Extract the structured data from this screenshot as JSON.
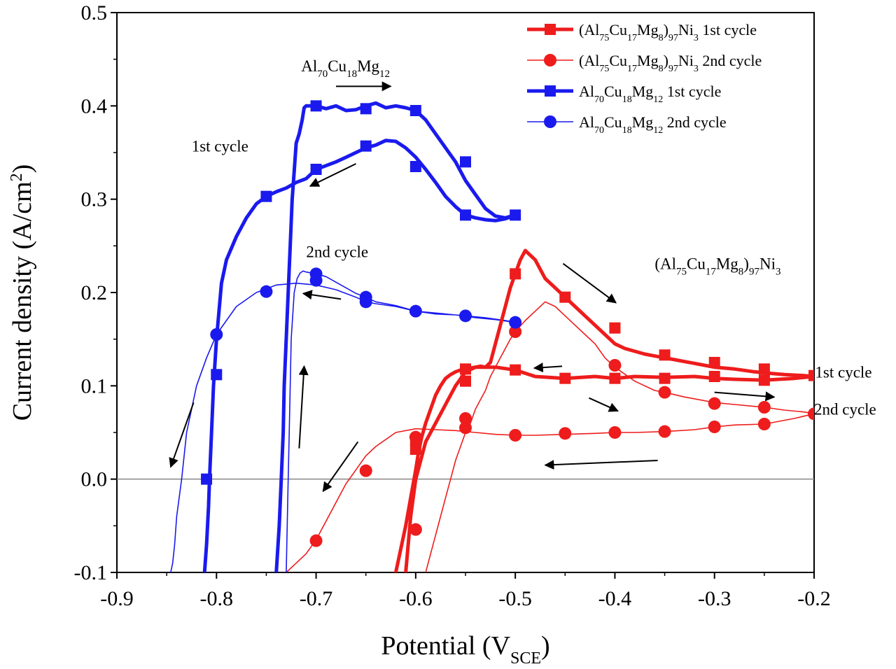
{
  "chart_data": {
    "type": "line",
    "title": "",
    "xlabel": {
      "main": "Potential (V",
      "sub": "SCE",
      "end": ")"
    },
    "ylabel": {
      "main": "Current density (A/cm",
      "sup": "2",
      "end": ")"
    },
    "xlim": [
      -0.9,
      -0.2
    ],
    "ylim": [
      -0.1,
      0.5
    ],
    "xticks": [
      -0.9,
      -0.8,
      -0.7,
      -0.6,
      -0.5,
      -0.4,
      -0.3,
      -0.2
    ],
    "xtick_labels": [
      "-0.9",
      "-0.8",
      "-0.7",
      "-0.6",
      "-0.5",
      "-0.4",
      "-0.3",
      "-0.2"
    ],
    "yticks": [
      -0.1,
      0.0,
      0.1,
      0.2,
      0.3,
      0.4,
      0.5
    ],
    "ytick_labels": [
      "-0.1",
      "0.0",
      "0.1",
      "0.2",
      "0.3",
      "0.4",
      "0.5"
    ],
    "zero_line": 0.0,
    "legend_position": "top-right",
    "series": [
      {
        "name": "(Al75Cu17Mg8)97Ni3 1st cycle",
        "legend": [
          {
            "t": "(Al"
          },
          {
            "t": "75",
            "s": "sub"
          },
          {
            "t": "Cu"
          },
          {
            "t": "17",
            "s": "sub"
          },
          {
            "t": "Mg"
          },
          {
            "t": "8",
            "s": "sub"
          },
          {
            "t": ")"
          },
          {
            "t": "97",
            "s": "sub"
          },
          {
            "t": "Ni"
          },
          {
            "t": "3",
            "s": "sub"
          },
          {
            "t": " 1st cycle"
          }
        ],
        "color": "#ee1c1c",
        "marker": "square",
        "weight": "thick",
        "x": [
          -0.62,
          -0.615,
          -0.61,
          -0.605,
          -0.6,
          -0.597,
          -0.594,
          -0.59,
          -0.585,
          -0.58,
          -0.575,
          -0.57,
          -0.565,
          -0.56,
          -0.555,
          -0.55,
          -0.545,
          -0.54,
          -0.535,
          -0.53,
          -0.525,
          -0.52,
          -0.515,
          -0.51,
          -0.505,
          -0.5,
          -0.495,
          -0.49,
          -0.485,
          -0.48,
          -0.475,
          -0.47,
          -0.46,
          -0.45,
          -0.44,
          -0.43,
          -0.42,
          -0.41,
          -0.4,
          -0.39,
          -0.38,
          -0.37,
          -0.36,
          -0.35,
          -0.34,
          -0.33,
          -0.32,
          -0.31,
          -0.3,
          -0.28,
          -0.26,
          -0.25,
          -0.23,
          -0.21,
          -0.2,
          -0.22,
          -0.25,
          -0.28,
          -0.3,
          -0.32,
          -0.35,
          -0.38,
          -0.4,
          -0.42,
          -0.45,
          -0.48,
          -0.5,
          -0.52,
          -0.54,
          -0.55,
          -0.56,
          -0.57,
          -0.58,
          -0.59,
          -0.595,
          -0.6,
          -0.605,
          -0.61
        ],
        "y": [
          -0.1,
          -0.075,
          -0.05,
          -0.02,
          0.01,
          0.03,
          0.045,
          0.06,
          0.075,
          0.09,
          0.1,
          0.108,
          0.112,
          0.115,
          0.117,
          0.118,
          0.119,
          0.12,
          0.121,
          0.12,
          0.125,
          0.145,
          0.165,
          0.185,
          0.205,
          0.22,
          0.235,
          0.245,
          0.24,
          0.235,
          0.225,
          0.215,
          0.205,
          0.195,
          0.185,
          0.175,
          0.165,
          0.155,
          0.145,
          0.14,
          0.137,
          0.134,
          0.132,
          0.13,
          0.128,
          0.126,
          0.124,
          0.122,
          0.12,
          0.118,
          0.115,
          0.114,
          0.112,
          0.111,
          0.11,
          0.108,
          0.106,
          0.107,
          0.108,
          0.11,
          0.109,
          0.11,
          0.108,
          0.11,
          0.108,
          0.11,
          0.117,
          0.12,
          0.12,
          0.115,
          0.1,
          0.08,
          0.06,
          0.04,
          0.02,
          0.0,
          -0.04,
          -0.1
        ],
        "marker_x": [
          -0.6,
          -0.55,
          -0.5,
          -0.45,
          -0.4,
          -0.35,
          -0.3,
          -0.25,
          -0.2,
          -0.25,
          -0.3,
          -0.35,
          -0.4,
          -0.45,
          -0.5,
          -0.55,
          -0.6
        ],
        "marker_y": [
          0.032,
          0.118,
          0.22,
          0.195,
          0.162,
          0.133,
          0.125,
          0.118,
          0.111,
          0.106,
          0.11,
          0.108,
          0.108,
          0.108,
          0.117,
          0.105,
          0.042
        ]
      },
      {
        "name": "(Al75Cu17Mg8)97Ni3 2nd cycle",
        "legend": [
          {
            "t": "(Al"
          },
          {
            "t": "75",
            "s": "sub"
          },
          {
            "t": "Cu"
          },
          {
            "t": "17",
            "s": "sub"
          },
          {
            "t": "Mg"
          },
          {
            "t": "8",
            "s": "sub"
          },
          {
            "t": ")"
          },
          {
            "t": "97",
            "s": "sub"
          },
          {
            "t": "Ni"
          },
          {
            "t": "3",
            "s": "sub"
          },
          {
            "t": " 2nd cycle"
          }
        ],
        "color": "#ee1c1c",
        "marker": "circle",
        "weight": "thin",
        "x": [
          -0.59,
          -0.585,
          -0.58,
          -0.575,
          -0.57,
          -0.565,
          -0.56,
          -0.555,
          -0.55,
          -0.545,
          -0.54,
          -0.535,
          -0.53,
          -0.525,
          -0.52,
          -0.515,
          -0.51,
          -0.505,
          -0.5,
          -0.49,
          -0.48,
          -0.47,
          -0.46,
          -0.45,
          -0.44,
          -0.43,
          -0.42,
          -0.41,
          -0.4,
          -0.38,
          -0.36,
          -0.35,
          -0.33,
          -0.3,
          -0.28,
          -0.26,
          -0.25,
          -0.23,
          -0.21,
          -0.2,
          -0.22,
          -0.25,
          -0.28,
          -0.3,
          -0.32,
          -0.35,
          -0.38,
          -0.4,
          -0.42,
          -0.45,
          -0.48,
          -0.5,
          -0.52,
          -0.54,
          -0.56,
          -0.58,
          -0.6,
          -0.62,
          -0.64,
          -0.65,
          -0.66,
          -0.67,
          -0.68,
          -0.69,
          -0.7,
          -0.71,
          -0.72,
          -0.73
        ],
        "y": [
          -0.1,
          -0.08,
          -0.06,
          -0.04,
          -0.02,
          0.0,
          0.02,
          0.035,
          0.05,
          0.06,
          0.075,
          0.085,
          0.095,
          0.11,
          0.12,
          0.13,
          0.14,
          0.15,
          0.158,
          0.17,
          0.18,
          0.19,
          0.185,
          0.175,
          0.165,
          0.155,
          0.145,
          0.13,
          0.12,
          0.105,
          0.095,
          0.093,
          0.088,
          0.082,
          0.08,
          0.078,
          0.077,
          0.074,
          0.072,
          0.07,
          0.065,
          0.059,
          0.058,
          0.056,
          0.053,
          0.051,
          0.05,
          0.05,
          0.049,
          0.048,
          0.047,
          0.047,
          0.048,
          0.05,
          0.052,
          0.053,
          0.054,
          0.05,
          0.035,
          0.025,
          0.01,
          -0.005,
          -0.025,
          -0.045,
          -0.065,
          -0.08,
          -0.09,
          -0.1
        ],
        "marker_x": [
          -0.6,
          -0.55,
          -0.5,
          -0.4,
          -0.35,
          -0.3,
          -0.25,
          -0.2,
          -0.25,
          -0.3,
          -0.35,
          -0.4,
          -0.45,
          -0.5,
          -0.55,
          -0.6,
          -0.65,
          -0.7
        ],
        "marker_y": [
          -0.054,
          0.055,
          0.158,
          0.122,
          0.093,
          0.081,
          0.077,
          0.07,
          0.059,
          0.056,
          0.051,
          0.05,
          0.049,
          0.047,
          0.065,
          0.045,
          0.009,
          -0.066
        ]
      },
      {
        "name": "Al70Cu18Mg12 1st cycle",
        "legend": [
          {
            "t": "Al"
          },
          {
            "t": "70",
            "s": "sub"
          },
          {
            "t": "Cu"
          },
          {
            "t": "18",
            "s": "sub"
          },
          {
            "t": "Mg"
          },
          {
            "t": "12",
            "s": "sub"
          },
          {
            "t": " 1st cycle"
          }
        ],
        "color": "#1a1aee",
        "marker": "square",
        "weight": "thick",
        "x": [
          -0.74,
          -0.737,
          -0.735,
          -0.733,
          -0.732,
          -0.73,
          -0.728,
          -0.726,
          -0.724,
          -0.722,
          -0.72,
          -0.717,
          -0.714,
          -0.712,
          -0.71,
          -0.7,
          -0.69,
          -0.68,
          -0.67,
          -0.66,
          -0.65,
          -0.64,
          -0.63,
          -0.62,
          -0.61,
          -0.6,
          -0.59,
          -0.58,
          -0.57,
          -0.56,
          -0.55,
          -0.54,
          -0.53,
          -0.52,
          -0.51,
          -0.5,
          -0.51,
          -0.52,
          -0.53,
          -0.54,
          -0.55,
          -0.56,
          -0.57,
          -0.58,
          -0.59,
          -0.6,
          -0.61,
          -0.62,
          -0.63,
          -0.64,
          -0.65,
          -0.66,
          -0.67,
          -0.68,
          -0.69,
          -0.7,
          -0.71,
          -0.72,
          -0.73,
          -0.74,
          -0.75,
          -0.76,
          -0.77,
          -0.78,
          -0.79,
          -0.795,
          -0.8,
          -0.803,
          -0.805,
          -0.807,
          -0.808,
          -0.81,
          -0.812
        ],
        "y": [
          -0.1,
          -0.05,
          0.0,
          0.05,
          0.1,
          0.15,
          0.2,
          0.25,
          0.3,
          0.33,
          0.36,
          0.37,
          0.385,
          0.398,
          0.4,
          0.4,
          0.397,
          0.4,
          0.395,
          0.396,
          0.4,
          0.403,
          0.398,
          0.4,
          0.398,
          0.395,
          0.385,
          0.37,
          0.355,
          0.34,
          0.32,
          0.305,
          0.29,
          0.282,
          0.28,
          0.283,
          0.279,
          0.277,
          0.278,
          0.28,
          0.283,
          0.292,
          0.303,
          0.318,
          0.332,
          0.345,
          0.355,
          0.362,
          0.363,
          0.358,
          0.355,
          0.35,
          0.345,
          0.34,
          0.336,
          0.332,
          0.322,
          0.318,
          0.312,
          0.308,
          0.303,
          0.295,
          0.28,
          0.26,
          0.235,
          0.21,
          0.15,
          0.1,
          0.05,
          0.0,
          -0.03,
          -0.07,
          -0.1
        ],
        "marker_x": [
          -0.7,
          -0.65,
          -0.6,
          -0.55,
          -0.5,
          -0.55,
          -0.6,
          -0.65,
          -0.7,
          -0.75,
          -0.8,
          -0.81
        ],
        "marker_y": [
          0.4,
          0.397,
          0.395,
          0.34,
          0.283,
          0.283,
          0.335,
          0.357,
          0.332,
          0.303,
          0.112,
          0.0
        ]
      },
      {
        "name": "Al70Cu18Mg12 2nd cycle",
        "legend": [
          {
            "t": "Al"
          },
          {
            "t": "70",
            "s": "sub"
          },
          {
            "t": "Cu"
          },
          {
            "t": "18",
            "s": "sub"
          },
          {
            "t": "Mg"
          },
          {
            "t": "12",
            "s": "sub"
          },
          {
            "t": " 2nd cycle"
          }
        ],
        "color": "#1a1aee",
        "marker": "circle",
        "weight": "thin",
        "x": [
          -0.73,
          -0.729,
          -0.728,
          -0.727,
          -0.726,
          -0.725,
          -0.722,
          -0.719,
          -0.716,
          -0.713,
          -0.71,
          -0.7,
          -0.69,
          -0.68,
          -0.67,
          -0.66,
          -0.65,
          -0.64,
          -0.62,
          -0.6,
          -0.58,
          -0.56,
          -0.55,
          -0.53,
          -0.51,
          -0.5,
          -0.52,
          -0.54,
          -0.56,
          -0.58,
          -0.6,
          -0.62,
          -0.64,
          -0.65,
          -0.66,
          -0.68,
          -0.7,
          -0.72,
          -0.74,
          -0.76,
          -0.78,
          -0.8,
          -0.81,
          -0.82,
          -0.83,
          -0.835,
          -0.84,
          -0.842,
          -0.844,
          -0.846
        ],
        "y": [
          -0.1,
          -0.05,
          0.0,
          0.05,
          0.1,
          0.15,
          0.2,
          0.215,
          0.221,
          0.223,
          0.222,
          0.22,
          0.217,
          0.211,
          0.205,
          0.199,
          0.195,
          0.19,
          0.186,
          0.18,
          0.177,
          0.176,
          0.175,
          0.173,
          0.17,
          0.168,
          0.171,
          0.173,
          0.176,
          0.178,
          0.18,
          0.185,
          0.188,
          0.19,
          0.195,
          0.203,
          0.208,
          0.21,
          0.208,
          0.2,
          0.185,
          0.155,
          0.13,
          0.1,
          0.05,
          0.0,
          -0.04,
          -0.07,
          -0.09,
          -0.1
        ],
        "marker_x": [
          -0.7,
          -0.7,
          -0.65,
          -0.6,
          -0.55,
          -0.5,
          -0.65,
          -0.75,
          -0.8
        ],
        "marker_y": [
          0.22,
          0.213,
          0.195,
          0.18,
          0.175,
          0.168,
          0.19,
          0.201,
          0.155
        ]
      }
    ],
    "annotations": [
      {
        "id": "label-blue-alloy",
        "rich": [
          {
            "t": "Al"
          },
          {
            "t": "70",
            "s": "sub"
          },
          {
            "t": "Cu"
          },
          {
            "t": "18",
            "s": "sub"
          },
          {
            "t": "Mg"
          },
          {
            "t": "12",
            "s": "sub"
          }
        ],
        "x": -0.715,
        "y": 0.437
      },
      {
        "id": "label-blue-1st-cycle",
        "rich": [
          {
            "t": "1st cycle"
          }
        ],
        "x": -0.825,
        "y": 0.351
      },
      {
        "id": "label-blue-2nd-cycle",
        "rich": [
          {
            "t": "2nd cycle"
          }
        ],
        "x": -0.71,
        "y": 0.238
      },
      {
        "id": "label-red-alloy",
        "rich": [
          {
            "t": "(Al"
          },
          {
            "t": "75",
            "s": "sub"
          },
          {
            "t": "Cu"
          },
          {
            "t": "17",
            "s": "sub"
          },
          {
            "t": "Mg"
          },
          {
            "t": "8",
            "s": "sub"
          },
          {
            "t": ")"
          },
          {
            "t": "97",
            "s": "sub"
          },
          {
            "t": "Ni"
          },
          {
            "t": "3",
            "s": "sub"
          }
        ],
        "x": -0.36,
        "y": 0.225
      },
      {
        "id": "label-red-1st-cycle",
        "rich": [
          {
            "t": "1st cycle"
          }
        ],
        "x": -0.199,
        "y": 0.109
      },
      {
        "id": "label-red-2nd-cycle",
        "rich": [
          {
            "t": "2nd cycle"
          }
        ],
        "x": -0.2,
        "y": 0.069
      }
    ],
    "arrows": [
      {
        "id": "arrow-top-right",
        "x1": -0.68,
        "y1": 0.421,
        "x2": -0.625,
        "y2": 0.421
      },
      {
        "id": "arrow-blue-1st-return",
        "x1": -0.66,
        "y1": 0.338,
        "x2": -0.706,
        "y2": 0.314
      },
      {
        "id": "arrow-blue-2nd-return",
        "x1": -0.675,
        "y1": 0.193,
        "x2": -0.713,
        "y2": 0.199
      },
      {
        "id": "arrow-blue-down",
        "x1": -0.823,
        "y1": 0.082,
        "x2": -0.846,
        "y2": 0.013
      },
      {
        "id": "arrow-blue-up",
        "x1": -0.717,
        "y1": 0.033,
        "x2": -0.712,
        "y2": 0.121
      },
      {
        "id": "arrow-red-down-right",
        "x1": -0.452,
        "y1": 0.231,
        "x2": -0.399,
        "y2": 0.189
      },
      {
        "id": "arrow-red-1st-left",
        "x1": -0.453,
        "y1": 0.121,
        "x2": -0.481,
        "y2": 0.119
      },
      {
        "id": "arrow-red-2nd-right",
        "x1": -0.426,
        "y1": 0.087,
        "x2": -0.397,
        "y2": 0.073
      },
      {
        "id": "arrow-red-far-right",
        "x1": -0.3,
        "y1": 0.093,
        "x2": -0.24,
        "y2": 0.088
      },
      {
        "id": "arrow-red-return-left",
        "x1": -0.357,
        "y1": 0.02,
        "x2": -0.47,
        "y2": 0.015
      },
      {
        "id": "arrow-red-down-left",
        "x1": -0.658,
        "y1": 0.04,
        "x2": -0.693,
        "y2": -0.013
      }
    ]
  }
}
